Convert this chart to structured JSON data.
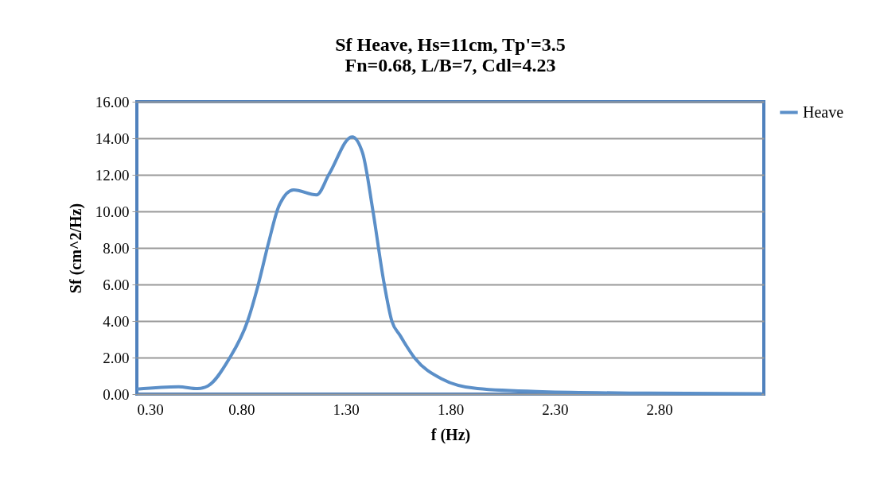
{
  "chart_data": {
    "type": "line",
    "title": [
      "Sf Heave, Hs=11cm, Tp'=3.5",
      "Fn=0.68, L/B=7, Cdl=4.23"
    ],
    "xlabel": "f (Hz)",
    "ylabel": "Sf (cm^2/Hz)",
    "x": [
      0.3,
      0.5,
      0.59,
      0.64,
      0.74,
      0.83,
      0.88,
      0.93,
      0.98,
      1.05,
      1.16,
      1.22,
      1.33,
      1.38,
      1.43,
      1.48,
      1.52,
      1.56,
      1.63,
      1.76,
      1.93,
      2.24,
      2.75,
      3.29
    ],
    "series": [
      {
        "name": "Heave",
        "color": "#5b8fc8",
        "values": [
          0.27,
          0.4,
          0.3,
          0.45,
          1.9,
          4.0,
          5.95,
          8.27,
          10.3,
          11.17,
          10.9,
          12.04,
          14.08,
          13.2,
          10.0,
          6.26,
          4.0,
          3.2,
          1.97,
          0.83,
          0.3,
          0.13,
          0.05,
          0.02
        ]
      }
    ],
    "xlim": [
      0.3,
      3.3
    ],
    "xticks": [
      {
        "value": 0.3,
        "label": "0.30"
      },
      {
        "value": 0.8,
        "label": "0.80"
      },
      {
        "value": 1.3,
        "label": "1.30"
      },
      {
        "value": 1.8,
        "label": "1.80"
      },
      {
        "value": 2.3,
        "label": "2.30"
      },
      {
        "value": 2.8,
        "label": "2.80"
      }
    ],
    "ylim": [
      0,
      16
    ],
    "yticks": [
      {
        "value": 0,
        "label": "0.00"
      },
      {
        "value": 2,
        "label": "2.00"
      },
      {
        "value": 4,
        "label": "4.00"
      },
      {
        "value": 6,
        "label": "6.00"
      },
      {
        "value": 8,
        "label": "8.00"
      },
      {
        "value": 10,
        "label": "10.00"
      },
      {
        "value": 12,
        "label": "12.00"
      },
      {
        "value": 14,
        "label": "14.00"
      },
      {
        "value": 16,
        "label": "16.00"
      }
    ],
    "grid": "y",
    "legend": "right",
    "marker": "none",
    "line_style": "solid"
  }
}
